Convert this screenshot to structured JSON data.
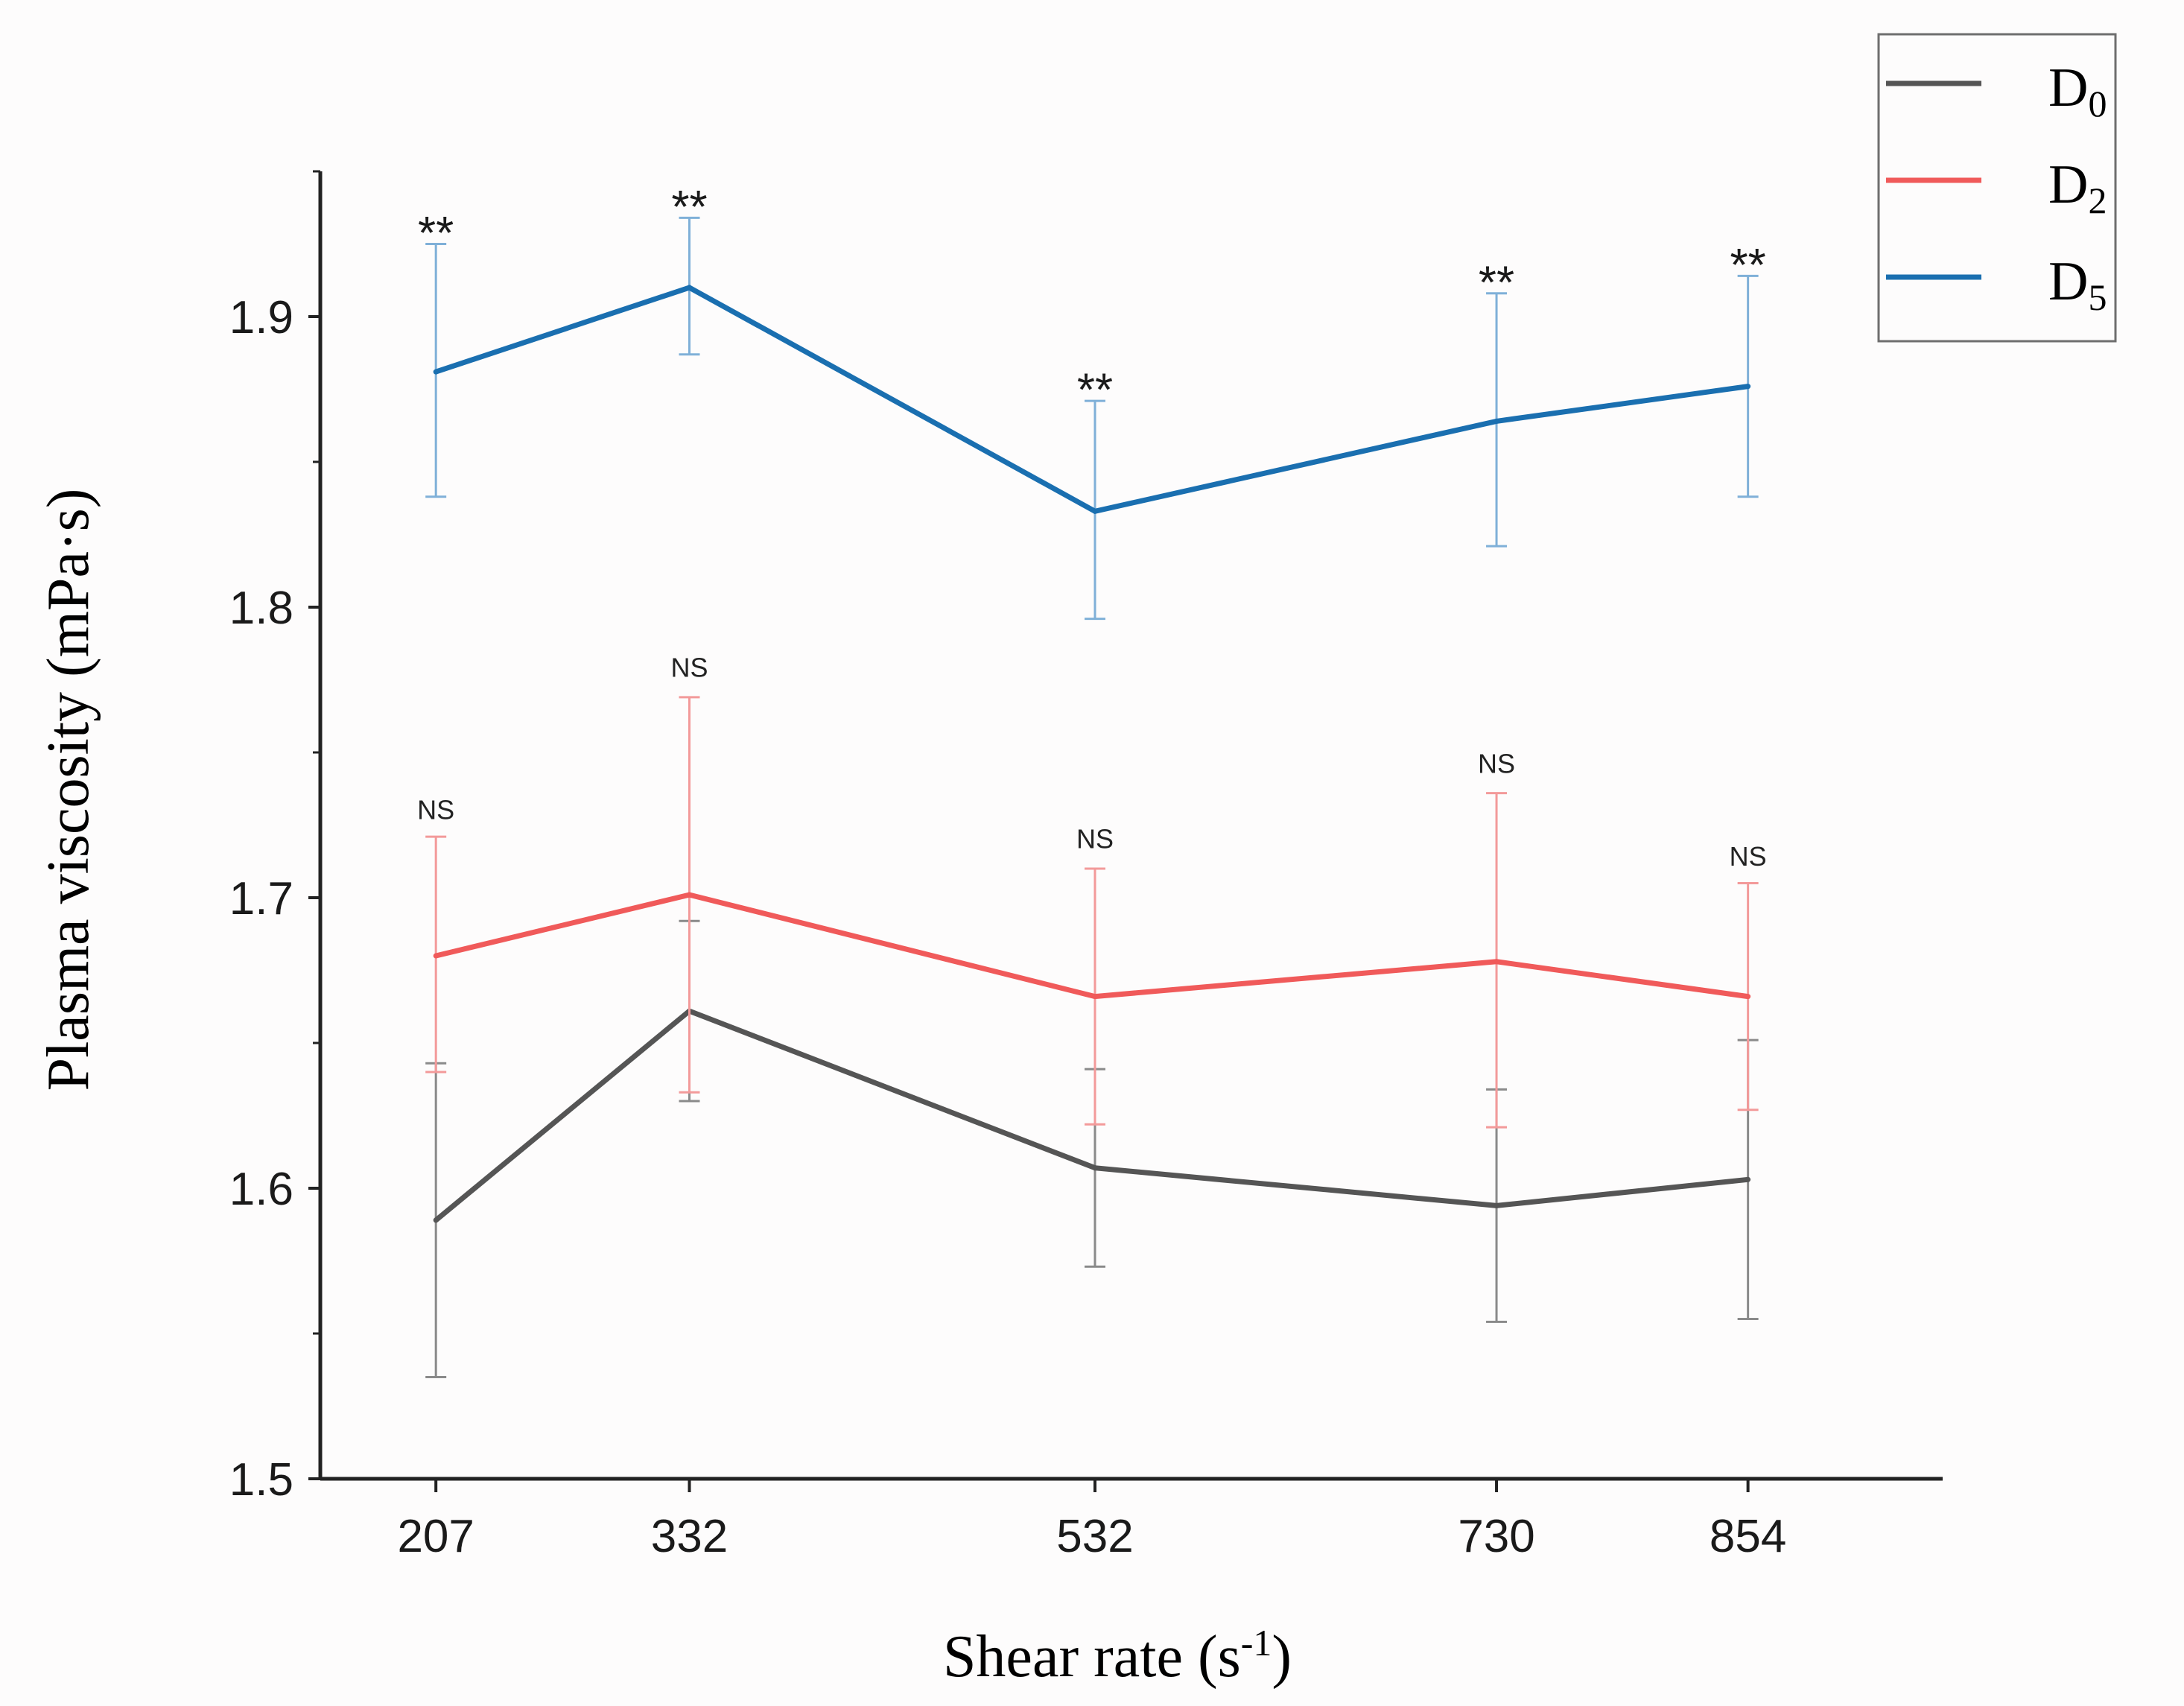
{
  "chart_data": {
    "type": "line",
    "xlabel": "Shear rate (s",
    "xlabel_sup": "-1",
    "xlabel_end": ")",
    "ylabel": "Plasma viscosity (mPa·s)",
    "categories": [
      "207",
      "332",
      "532",
      "730",
      "854"
    ],
    "x": [
      207,
      332,
      532,
      730,
      854
    ],
    "xlim": [
      150,
      950
    ],
    "ylim": [
      1.5,
      1.95
    ],
    "yticks": [
      "1.5",
      "1.6",
      "1.7",
      "1.8",
      "1.9"
    ],
    "ytick_values": [
      1.5,
      1.6,
      1.7,
      1.8,
      1.9
    ],
    "legend_position": "top-right",
    "grid": false,
    "series": [
      {
        "name": "D",
        "sub": "0",
        "color": "#555555",
        "errcolor": "#8a8a8a",
        "values": [
          1.589,
          1.661,
          1.607,
          1.594,
          1.603
        ],
        "err_low": [
          1.535,
          1.63,
          1.573,
          1.554,
          1.555
        ],
        "err_high": [
          1.643,
          1.692,
          1.641,
          1.634,
          1.651
        ]
      },
      {
        "name": "D",
        "sub": "2",
        "color": "#f05a5a",
        "errcolor": "#f39a9a",
        "values": [
          1.68,
          1.701,
          1.666,
          1.678,
          1.666
        ],
        "err_low": [
          1.64,
          1.633,
          1.622,
          1.621,
          1.627
        ],
        "err_high": [
          1.721,
          1.769,
          1.71,
          1.736,
          1.705
        ],
        "annotations": [
          "NS",
          "NS",
          "NS",
          "NS",
          "NS"
        ],
        "annotation_y": [
          1.727,
          1.776,
          1.717,
          1.743,
          1.711
        ]
      },
      {
        "name": "D",
        "sub": "5",
        "color": "#1a6fb0",
        "errcolor": "#7fb0d8",
        "values": [
          1.881,
          1.91,
          1.833,
          1.864,
          1.876
        ],
        "err_low": [
          1.838,
          1.887,
          1.796,
          1.821,
          1.838
        ],
        "err_high": [
          1.925,
          1.934,
          1.871,
          1.908,
          1.914
        ],
        "annotations": [
          "**",
          "**",
          "**",
          "**",
          "**"
        ],
        "annotation_y": [
          1.931,
          1.94,
          1.877,
          1.914,
          1.92
        ]
      }
    ]
  }
}
